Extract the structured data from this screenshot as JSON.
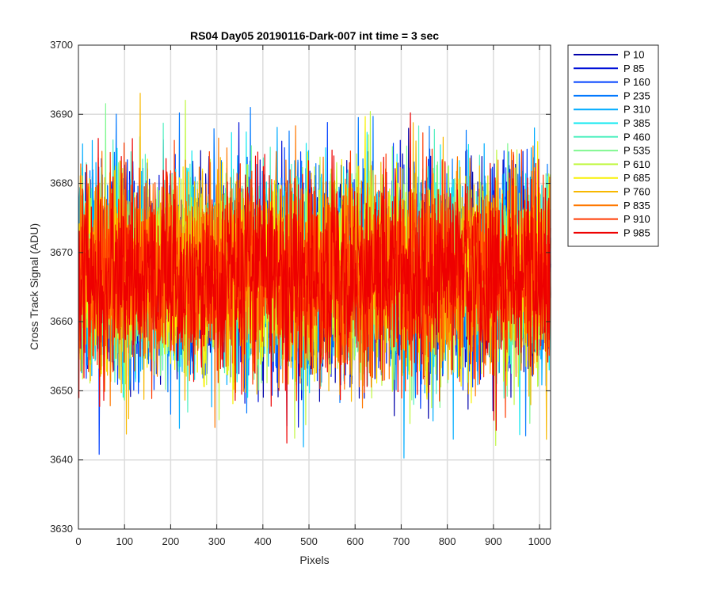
{
  "chart_data": {
    "type": "line",
    "title": "RS04 Day05 20190116-Dark-007 int time = 3 sec",
    "xlabel": "Pixels",
    "ylabel": "Cross Track Signal (ADU)",
    "xlim": [
      0,
      1024
    ],
    "ylim": [
      3630,
      3700
    ],
    "xticks": [
      0,
      100,
      200,
      300,
      400,
      500,
      600,
      700,
      800,
      900,
      1000
    ],
    "yticks": [
      3630,
      3640,
      3650,
      3660,
      3670,
      3680,
      3690,
      3700
    ],
    "grid": true,
    "legend_position": "outside-top-right",
    "noise_model": {
      "mean": 3667,
      "std": 7,
      "min_observed": 3637,
      "max_observed": 3696
    },
    "series": [
      {
        "name": "P 10",
        "color": "#0000aa"
      },
      {
        "name": "P 85",
        "color": "#0010d8"
      },
      {
        "name": "P 160",
        "color": "#0040ff"
      },
      {
        "name": "P 235",
        "color": "#0078ff"
      },
      {
        "name": "P 310",
        "color": "#00acff"
      },
      {
        "name": "P 385",
        "color": "#10e8f0"
      },
      {
        "name": "P 460",
        "color": "#50f0c0"
      },
      {
        "name": "P 535",
        "color": "#80f890"
      },
      {
        "name": "P 610",
        "color": "#c0f840"
      },
      {
        "name": "P 685",
        "color": "#f8f000"
      },
      {
        "name": "P 760",
        "color": "#f8b800"
      },
      {
        "name": "P 835",
        "color": "#ff7800"
      },
      {
        "name": "P 910",
        "color": "#ff3a00"
      },
      {
        "name": "P 985",
        "color": "#ee0000"
      }
    ]
  }
}
